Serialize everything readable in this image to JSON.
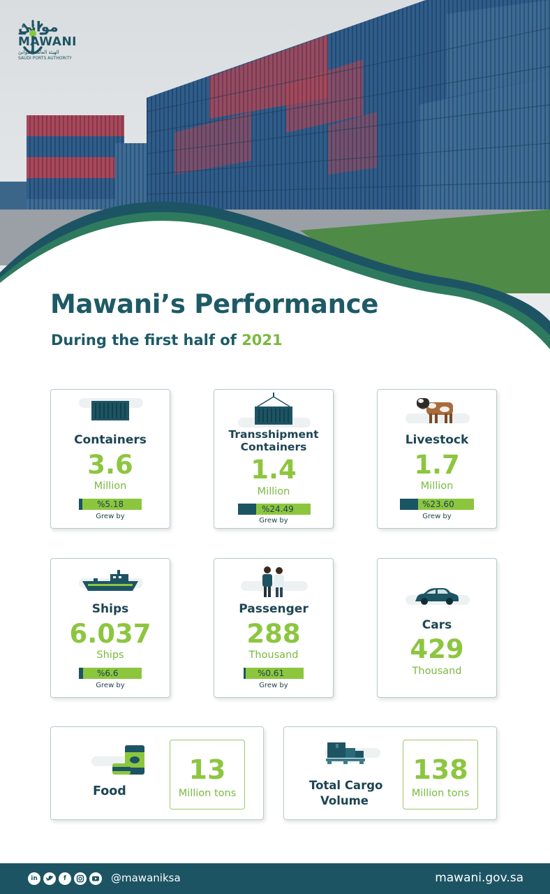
{
  "brand": {
    "arabic_name": "موانئ",
    "english_name": "MAWANI",
    "arabic_subtitle": "الهيئة العامة للموانئ",
    "english_subtitle": "SAUDI PORTS AUTHORITY"
  },
  "title": "Mawani’s Performance",
  "subtitle": "During the first half of",
  "year": "2021",
  "stats": [
    {
      "name": "Containers",
      "value": "3.6",
      "unit": "Million",
      "growth": "%5.18",
      "growth_label": "Grew by",
      "icon": "container-icon"
    },
    {
      "name_line1": "Transshipment",
      "name_line2": "Containers",
      "value": "1.4",
      "unit": "Million",
      "growth": "%24.49",
      "growth_label": "Grew by",
      "icon": "crane-container-icon"
    },
    {
      "name": "Livestock",
      "value": "1.7",
      "unit": "Million",
      "growth": "%23.60",
      "growth_label": "Grew by",
      "icon": "cow-icon"
    },
    {
      "name": "Ships",
      "value": "6.037",
      "unit": "Ships",
      "growth": "%6.6",
      "growth_label": "Grew by",
      "icon": "ship-icon"
    },
    {
      "name": "Passenger",
      "value": "288",
      "unit": "Thousand",
      "growth": "%0.61",
      "growth_label": "Grew by",
      "icon": "passengers-icon"
    },
    {
      "name": "Cars",
      "value": "429",
      "unit": "Thousand",
      "icon": "car-icon"
    }
  ],
  "totals": [
    {
      "name": "Food",
      "value": "13",
      "unit": "Million tons",
      "icon": "food-can-icon"
    },
    {
      "name_line1": "Total Cargo",
      "name_line2": "Volume",
      "value": "138",
      "unit": "Million tons",
      "icon": "cargo-pallet-icon"
    }
  ],
  "footer": {
    "social_icons": [
      "linkedin-icon",
      "twitter-icon",
      "facebook-icon",
      "instagram-icon",
      "youtube-icon"
    ],
    "handle": "@mawaniksa",
    "website": "mawani.gov.sa"
  },
  "colors": {
    "teal": "#1d5463",
    "green": "#8cc63f"
  }
}
